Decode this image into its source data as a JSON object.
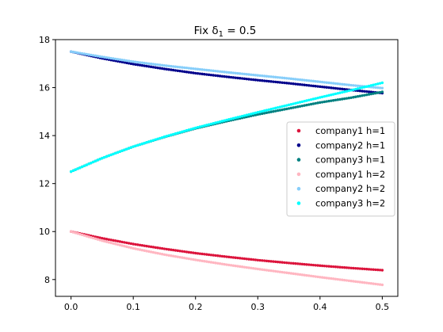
{
  "chart_data": {
    "type": "scatter",
    "title": "Fix δ₁ = 0.5",
    "xlabel": "",
    "ylabel": "",
    "xlim": [
      -0.025,
      0.525
    ],
    "ylim": [
      7.3,
      18
    ],
    "xticks": [
      0.0,
      0.1,
      0.2,
      0.3,
      0.4,
      0.5
    ],
    "xtick_labels": [
      "0.0",
      "0.1",
      "0.2",
      "0.3",
      "0.4",
      "0.5"
    ],
    "yticks": [
      8,
      10,
      12,
      14,
      16,
      18
    ],
    "ytick_labels": [
      "8",
      "10",
      "12",
      "14",
      "16",
      "18"
    ],
    "grid": false,
    "legend_position": "center-right",
    "series": [
      {
        "name": "company1 h=1",
        "color": "#dc143c",
        "x": [
          0.0,
          0.05,
          0.1,
          0.15,
          0.2,
          0.25,
          0.3,
          0.35,
          0.4,
          0.45,
          0.5
        ],
        "y": [
          10.0,
          9.72,
          9.48,
          9.28,
          9.1,
          8.95,
          8.81,
          8.69,
          8.58,
          8.48,
          8.39
        ]
      },
      {
        "name": "company2 h=1",
        "color": "#00008b",
        "x": [
          0.0,
          0.05,
          0.1,
          0.15,
          0.2,
          0.25,
          0.3,
          0.35,
          0.4,
          0.45,
          0.5
        ],
        "y": [
          17.5,
          17.22,
          16.98,
          16.78,
          16.6,
          16.45,
          16.31,
          16.18,
          16.04,
          15.9,
          15.77
        ]
      },
      {
        "name": "company3 h=1",
        "color": "#008080",
        "x": [
          0.0,
          0.05,
          0.1,
          0.15,
          0.2,
          0.25,
          0.3,
          0.35,
          0.4,
          0.45,
          0.5
        ],
        "y": [
          12.5,
          13.06,
          13.54,
          13.94,
          14.3,
          14.6,
          14.88,
          15.13,
          15.38,
          15.58,
          15.82
        ]
      },
      {
        "name": "company1 h=2",
        "color": "#ffb6c1",
        "x": [
          0.0,
          0.05,
          0.1,
          0.15,
          0.2,
          0.25,
          0.3,
          0.35,
          0.4,
          0.45,
          0.5
        ],
        "y": [
          10.0,
          9.62,
          9.3,
          9.04,
          8.82,
          8.62,
          8.44,
          8.27,
          8.1,
          7.94,
          7.78
        ]
      },
      {
        "name": "company2 h=2",
        "color": "#87cefa",
        "x": [
          0.0,
          0.05,
          0.1,
          0.15,
          0.2,
          0.25,
          0.3,
          0.35,
          0.4,
          0.45,
          0.5
        ],
        "y": [
          17.5,
          17.28,
          17.08,
          16.92,
          16.78,
          16.64,
          16.51,
          16.38,
          16.24,
          16.1,
          15.98
        ]
      },
      {
        "name": "company3 h=2",
        "color": "#00ffff",
        "x": [
          0.0,
          0.05,
          0.1,
          0.15,
          0.2,
          0.25,
          0.3,
          0.35,
          0.4,
          0.45,
          0.5
        ],
        "y": [
          12.5,
          13.06,
          13.54,
          13.95,
          14.32,
          14.65,
          14.97,
          15.28,
          15.59,
          15.89,
          16.2
        ]
      }
    ]
  }
}
